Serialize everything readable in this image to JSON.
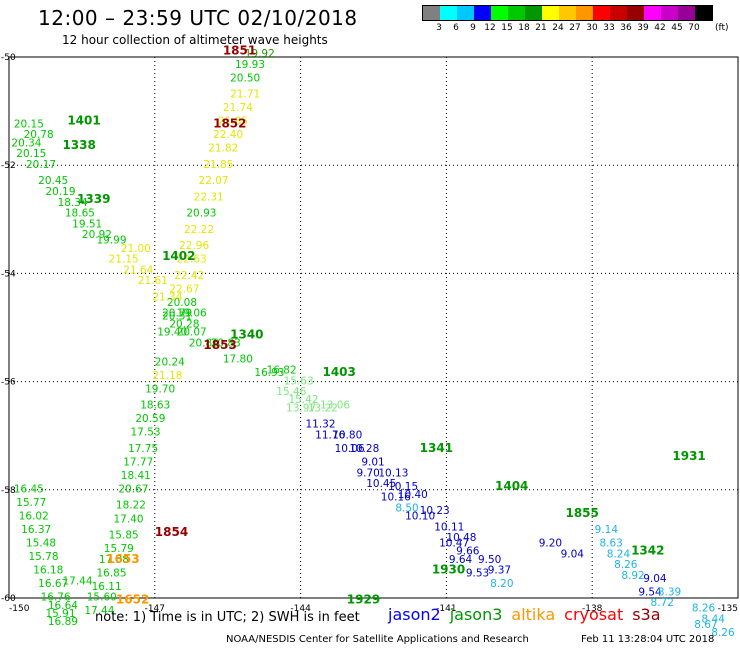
{
  "header": {
    "title": "12:00 – 23:59 UTC 02/10/2018",
    "subtitle": "12 hour collection of altimeter wave heights"
  },
  "colorbar": {
    "unit": "(ft)",
    "colors": [
      "#808080",
      "#00ffff",
      "#00c8ff",
      "#0000ff",
      "#00ff00",
      "#00c800",
      "#009600",
      "#ffff00",
      "#ffc800",
      "#ff9600",
      "#ff0000",
      "#c80000",
      "#960000",
      "#ff00ff",
      "#c800c8",
      "#960096",
      "#000000"
    ],
    "labels": [
      "3",
      "6",
      "9",
      "12",
      "15",
      "18",
      "21",
      "24",
      "27",
      "30",
      "33",
      "36",
      "39",
      "42",
      "45",
      "70"
    ]
  },
  "axes": {
    "lon_ticks": [
      "-150",
      "-147",
      "-144",
      "-141",
      "-138",
      "-135"
    ],
    "lat_ticks": [
      "-50",
      "-52",
      "-54",
      "-56",
      "-58",
      "-60"
    ],
    "lon_range": [
      -150,
      -135
    ],
    "lat_range": [
      -60,
      -50
    ]
  },
  "satellite_colors": {
    "jason2": "#0000ff",
    "jason3": "#009600",
    "altika": "#ff9600",
    "cryosat": "#ff0000",
    "s3a": "#960000"
  },
  "value_colors": {
    "yellow": "#e6e600",
    "lightgreen": "#00c800",
    "green": "#1f9a00",
    "cyan": "#1eb4e6",
    "blue": "#0000cc",
    "palegreen": "#7ee87e"
  },
  "time_labels": [
    {
      "text": "1851",
      "lon": -145.6,
      "lat": -49.95,
      "color": "s3a"
    },
    {
      "text": "1852",
      "lon": -145.8,
      "lat": -51.3,
      "color": "s3a"
    },
    {
      "text": "1853",
      "lon": -146.0,
      "lat": -55.4,
      "color": "s3a"
    },
    {
      "text": "1854",
      "lon": -147.0,
      "lat": -58.85,
      "color": "s3a"
    },
    {
      "text": "1401",
      "lon": -148.8,
      "lat": -51.25,
      "color": "jason3"
    },
    {
      "text": "1338",
      "lon": -148.9,
      "lat": -51.7,
      "color": "jason3"
    },
    {
      "text": "1339",
      "lon": -148.6,
      "lat": -52.7,
      "color": "jason3"
    },
    {
      "text": "1402",
      "lon": -146.85,
      "lat": -53.75,
      "color": "jason3"
    },
    {
      "text": "1340",
      "lon": -145.45,
      "lat": -55.2,
      "color": "jason3"
    },
    {
      "text": "1403",
      "lon": -143.55,
      "lat": -55.9,
      "color": "jason3"
    },
    {
      "text": "1341",
      "lon": -141.55,
      "lat": -57.3,
      "color": "jason3"
    },
    {
      "text": "1404",
      "lon": -140.0,
      "lat": -58.0,
      "color": "jason3"
    },
    {
      "text": "1931",
      "lon": -136.35,
      "lat": -57.45,
      "color": "jason3"
    },
    {
      "text": "1855",
      "lon": -138.55,
      "lat": -58.5,
      "color": "jason3"
    },
    {
      "text": "1342",
      "lon": -137.2,
      "lat": -59.2,
      "color": "jason3"
    },
    {
      "text": "1930",
      "lon": -141.3,
      "lat": -59.55,
      "color": "jason3"
    },
    {
      "text": "1929",
      "lon": -143.05,
      "lat": -60.1,
      "color": "jason3"
    },
    {
      "text": "1653",
      "lon": -148.0,
      "lat": -59.35,
      "color": "altika"
    },
    {
      "text": "1652",
      "lon": -147.8,
      "lat": -60.1,
      "color": "altika"
    }
  ],
  "value_labels": [
    {
      "text": "19.92",
      "lon": -145.15,
      "lat": -50.0,
      "color": "green"
    },
    {
      "text": "19.93",
      "lon": -145.35,
      "lat": -50.2,
      "color": "lightgreen"
    },
    {
      "text": "20.50",
      "lon": -145.45,
      "lat": -50.45,
      "color": "lightgreen"
    },
    {
      "text": "21.71",
      "lon": -145.45,
      "lat": -50.75,
      "color": "yellow"
    },
    {
      "text": "21.74",
      "lon": -145.6,
      "lat": -51.0,
      "color": "yellow"
    },
    {
      "text": "21.85",
      "lon": -145.7,
      "lat": -51.25,
      "color": "yellow"
    },
    {
      "text": "22.40",
      "lon": -145.8,
      "lat": -51.5,
      "color": "yellow"
    },
    {
      "text": "21.82",
      "lon": -145.9,
      "lat": -51.75,
      "color": "yellow"
    },
    {
      "text": "21.85",
      "lon": -146.0,
      "lat": -52.05,
      "color": "yellow"
    },
    {
      "text": "22.07",
      "lon": -146.1,
      "lat": -52.35,
      "color": "yellow"
    },
    {
      "text": "22.31",
      "lon": -146.2,
      "lat": -52.65,
      "color": "yellow"
    },
    {
      "text": "20.93",
      "lon": -146.35,
      "lat": -52.95,
      "color": "lightgreen"
    },
    {
      "text": "22.22",
      "lon": -146.4,
      "lat": -53.25,
      "color": "yellow"
    },
    {
      "text": "22.96",
      "lon": -146.5,
      "lat": -53.55,
      "color": "yellow"
    },
    {
      "text": "22.63",
      "lon": -146.55,
      "lat": -53.8,
      "color": "yellow"
    },
    {
      "text": "22.42",
      "lon": -146.6,
      "lat": -54.1,
      "color": "yellow"
    },
    {
      "text": "22.67",
      "lon": -146.7,
      "lat": -54.35,
      "color": "yellow"
    },
    {
      "text": "20.08",
      "lon": -146.75,
      "lat": -54.6,
      "color": "lightgreen"
    },
    {
      "text": "20.31",
      "lon": -146.85,
      "lat": -54.85,
      "color": "lightgreen"
    },
    {
      "text": "19.40",
      "lon": -146.95,
      "lat": -55.15,
      "color": "lightgreen"
    },
    {
      "text": "20.24",
      "lon": -147.0,
      "lat": -55.7,
      "color": "lightgreen"
    },
    {
      "text": "21.18",
      "lon": -147.05,
      "lat": -55.95,
      "color": "yellow"
    },
    {
      "text": "19.70",
      "lon": -147.2,
      "lat": -56.2,
      "color": "lightgreen"
    },
    {
      "text": "18.63",
      "lon": -147.3,
      "lat": -56.5,
      "color": "lightgreen"
    },
    {
      "text": "20.59",
      "lon": -147.4,
      "lat": -56.75,
      "color": "lightgreen"
    },
    {
      "text": "17.53",
      "lon": -147.5,
      "lat": -57.0,
      "color": "lightgreen"
    },
    {
      "text": "17.75",
      "lon": -147.55,
      "lat": -57.3,
      "color": "lightgreen"
    },
    {
      "text": "17.77",
      "lon": -147.65,
      "lat": -57.55,
      "color": "lightgreen"
    },
    {
      "text": "18.41",
      "lon": -147.7,
      "lat": -57.8,
      "color": "lightgreen"
    },
    {
      "text": "20.67",
      "lon": -147.75,
      "lat": -58.05,
      "color": "lightgreen"
    },
    {
      "text": "18.22",
      "lon": -147.8,
      "lat": -58.35,
      "color": "lightgreen"
    },
    {
      "text": "17.40",
      "lon": -147.85,
      "lat": -58.6,
      "color": "lightgreen"
    },
    {
      "text": "15.85",
      "lon": -147.95,
      "lat": -58.9,
      "color": "lightgreen"
    },
    {
      "text": "15.79",
      "lon": -148.05,
      "lat": -59.15,
      "color": "lightgreen"
    },
    {
      "text": "17.38",
      "lon": -148.15,
      "lat": -59.35,
      "color": "lightgreen"
    },
    {
      "text": "16.85",
      "lon": -148.2,
      "lat": -59.6,
      "color": "lightgreen"
    },
    {
      "text": "16.11",
      "lon": -148.3,
      "lat": -59.85,
      "color": "lightgreen"
    },
    {
      "text": "15.60",
      "lon": -148.4,
      "lat": -60.05,
      "color": "lightgreen"
    },
    {
      "text": "17.44",
      "lon": -148.45,
      "lat": -60.3,
      "color": "lightgreen"
    },
    {
      "text": "16.45",
      "lon": -149.9,
      "lat": -58.05,
      "color": "lightgreen"
    },
    {
      "text": "15.77",
      "lon": -149.85,
      "lat": -58.3,
      "color": "lightgreen"
    },
    {
      "text": "16.02",
      "lon": -149.8,
      "lat": -58.55,
      "color": "lightgreen"
    },
    {
      "text": "16.37",
      "lon": -149.75,
      "lat": -58.8,
      "color": "lightgreen"
    },
    {
      "text": "15.48",
      "lon": -149.65,
      "lat": -59.05,
      "color": "lightgreen"
    },
    {
      "text": "15.78",
      "lon": -149.6,
      "lat": -59.3,
      "color": "lightgreen"
    },
    {
      "text": "16.18",
      "lon": -149.5,
      "lat": -59.55,
      "color": "lightgreen"
    },
    {
      "text": "16.67",
      "lon": -149.4,
      "lat": -59.8,
      "color": "lightgreen"
    },
    {
      "text": "17.44",
      "lon": -148.9,
      "lat": -59.75,
      "color": "lightgreen"
    },
    {
      "text": "16.76",
      "lon": -149.35,
      "lat": -60.05,
      "color": "lightgreen"
    },
    {
      "text": "16.64",
      "lon": -149.2,
      "lat": -60.2,
      "color": "lightgreen"
    },
    {
      "text": "15.91",
      "lon": -149.25,
      "lat": -60.35,
      "color": "lightgreen"
    },
    {
      "text": "16.89",
      "lon": -149.2,
      "lat": -60.5,
      "color": "lightgreen"
    },
    {
      "text": "20.15",
      "lon": -149.9,
      "lat": -51.3,
      "color": "lightgreen"
    },
    {
      "text": "20.78",
      "lon": -149.7,
      "lat": -51.5,
      "color": "lightgreen"
    },
    {
      "text": "20.34",
      "lon": -149.95,
      "lat": -51.65,
      "color": "lightgreen"
    },
    {
      "text": "20.15",
      "lon": -149.85,
      "lat": -51.85,
      "color": "lightgreen"
    },
    {
      "text": "20.17",
      "lon": -149.65,
      "lat": -52.05,
      "color": "lightgreen"
    },
    {
      "text": "20.45",
      "lon": -149.4,
      "lat": -52.35,
      "color": "lightgreen"
    },
    {
      "text": "20.19",
      "lon": -149.25,
      "lat": -52.55,
      "color": "lightgreen"
    },
    {
      "text": "18.34",
      "lon": -149.0,
      "lat": -52.75,
      "color": "lightgreen"
    },
    {
      "text": "18.65",
      "lon": -148.85,
      "lat": -52.95,
      "color": "lightgreen"
    },
    {
      "text": "19.51",
      "lon": -148.7,
      "lat": -53.15,
      "color": "lightgreen"
    },
    {
      "text": "20.92",
      "lon": -148.5,
      "lat": -53.35,
      "color": "lightgreen"
    },
    {
      "text": "19.99",
      "lon": -148.2,
      "lat": -53.45,
      "color": "lightgreen"
    },
    {
      "text": "21.00",
      "lon": -147.7,
      "lat": -53.6,
      "color": "yellow"
    },
    {
      "text": "21.15",
      "lon": -147.95,
      "lat": -53.8,
      "color": "yellow"
    },
    {
      "text": "21.64",
      "lon": -147.65,
      "lat": -54.0,
      "color": "yellow"
    },
    {
      "text": "21.61",
      "lon": -147.35,
      "lat": -54.2,
      "color": "yellow"
    },
    {
      "text": "21.34",
      "lon": -147.05,
      "lat": -54.5,
      "color": "yellow"
    },
    {
      "text": "20.79",
      "lon": -146.85,
      "lat": -54.8,
      "color": "lightgreen"
    },
    {
      "text": "19.06",
      "lon": -146.55,
      "lat": -54.8,
      "color": "lightgreen"
    },
    {
      "text": "20.28",
      "lon": -146.7,
      "lat": -55.0,
      "color": "lightgreen"
    },
    {
      "text": "20.07",
      "lon": -146.55,
      "lat": -55.15,
      "color": "lightgreen"
    },
    {
      "text": "20.86",
      "lon": -146.3,
      "lat": -55.35,
      "color": "lightgreen"
    },
    {
      "text": "20.83",
      "lon": -145.85,
      "lat": -55.35,
      "color": "lightgreen"
    },
    {
      "text": "17.80",
      "lon": -145.6,
      "lat": -55.65,
      "color": "lightgreen"
    },
    {
      "text": "16.93",
      "lon": -144.95,
      "lat": -55.9,
      "color": "lightgreen"
    },
    {
      "text": "16.82",
      "lon": -144.7,
      "lat": -55.85,
      "color": "lightgreen"
    },
    {
      "text": "15.63",
      "lon": -144.35,
      "lat": -56.05,
      "color": "palegreen"
    },
    {
      "text": "15.46",
      "lon": -144.5,
      "lat": -56.25,
      "color": "palegreen"
    },
    {
      "text": "15.42",
      "lon": -144.25,
      "lat": -56.4,
      "color": "palegreen"
    },
    {
      "text": "13.97",
      "lon": -144.3,
      "lat": -56.55,
      "color": "palegreen"
    },
    {
      "text": "13.22",
      "lon": -143.85,
      "lat": -56.55,
      "color": "palegreen"
    },
    {
      "text": "13.06",
      "lon": -143.6,
      "lat": -56.5,
      "color": "palegreen"
    },
    {
      "text": "11.32",
      "lon": -143.9,
      "lat": -56.85,
      "color": "blue"
    },
    {
      "text": "11.76",
      "lon": -143.7,
      "lat": -57.05,
      "color": "blue"
    },
    {
      "text": "10.80",
      "lon": -143.35,
      "lat": -57.05,
      "color": "blue"
    },
    {
      "text": "10.06",
      "lon": -143.3,
      "lat": -57.3,
      "color": "blue"
    },
    {
      "text": "10.28",
      "lon": -143.0,
      "lat": -57.3,
      "color": "blue"
    },
    {
      "text": "9.01",
      "lon": -142.75,
      "lat": -57.55,
      "color": "blue"
    },
    {
      "text": "9.70",
      "lon": -142.85,
      "lat": -57.75,
      "color": "blue"
    },
    {
      "text": "10.13",
      "lon": -142.4,
      "lat": -57.75,
      "color": "blue"
    },
    {
      "text": "10.45",
      "lon": -142.65,
      "lat": -57.95,
      "color": "blue"
    },
    {
      "text": "10.15",
      "lon": -142.2,
      "lat": -58.0,
      "color": "blue"
    },
    {
      "text": "10.16",
      "lon": -142.35,
      "lat": -58.2,
      "color": "blue"
    },
    {
      "text": "10.40",
      "lon": -142.0,
      "lat": -58.15,
      "color": "blue"
    },
    {
      "text": "8.50",
      "lon": -142.05,
      "lat": -58.4,
      "color": "cyan"
    },
    {
      "text": "10.10",
      "lon": -141.85,
      "lat": -58.55,
      "color": "blue"
    },
    {
      "text": "10.23",
      "lon": -141.55,
      "lat": -58.45,
      "color": "blue"
    },
    {
      "text": "10.11",
      "lon": -141.25,
      "lat": -58.75,
      "color": "blue"
    },
    {
      "text": "10.48",
      "lon": -141.0,
      "lat": -58.95,
      "color": "blue"
    },
    {
      "text": "10.47",
      "lon": -141.15,
      "lat": -59.05,
      "color": "blue"
    },
    {
      "text": "9.66",
      "lon": -140.8,
      "lat": -59.2,
      "color": "blue"
    },
    {
      "text": "9.64",
      "lon": -140.95,
      "lat": -59.35,
      "color": "blue"
    },
    {
      "text": "9.50",
      "lon": -140.35,
      "lat": -59.35,
      "color": "blue"
    },
    {
      "text": "9.53",
      "lon": -140.6,
      "lat": -59.6,
      "color": "blue"
    },
    {
      "text": "9.37",
      "lon": -140.15,
      "lat": -59.55,
      "color": "blue"
    },
    {
      "text": "8.20",
      "lon": -140.1,
      "lat": -59.8,
      "color": "cyan"
    },
    {
      "text": "9.20",
      "lon": -139.1,
      "lat": -59.05,
      "color": "blue"
    },
    {
      "text": "9.04",
      "lon": -138.65,
      "lat": -59.25,
      "color": "blue"
    },
    {
      "text": "9.14",
      "lon": -137.95,
      "lat": -58.8,
      "color": "cyan"
    },
    {
      "text": "8.63",
      "lon": -137.85,
      "lat": -59.05,
      "color": "cyan"
    },
    {
      "text": "8.24",
      "lon": -137.7,
      "lat": -59.25,
      "color": "cyan"
    },
    {
      "text": "8.26",
      "lon": -137.55,
      "lat": -59.45,
      "color": "cyan"
    },
    {
      "text": "8.92",
      "lon": -137.4,
      "lat": -59.65,
      "color": "cyan"
    },
    {
      "text": "9.04",
      "lon": -136.95,
      "lat": -59.7,
      "color": "blue"
    },
    {
      "text": "9.54",
      "lon": -137.05,
      "lat": -59.95,
      "color": "blue"
    },
    {
      "text": "8.39",
      "lon": -136.65,
      "lat": -59.95,
      "color": "cyan"
    },
    {
      "text": "8.72",
      "lon": -136.8,
      "lat": -60.15,
      "color": "cyan"
    },
    {
      "text": "8.26",
      "lon": -135.95,
      "lat": -60.25,
      "color": "cyan"
    },
    {
      "text": "8.44",
      "lon": -135.75,
      "lat": -60.45,
      "color": "cyan"
    },
    {
      "text": "8.26",
      "lon": -135.55,
      "lat": -60.7,
      "color": "cyan"
    },
    {
      "text": "8.67",
      "lon": -135.9,
      "lat": -60.55,
      "color": "cyan"
    }
  ],
  "footer": {
    "note": "note: 1) Time is in UTC; 2) SWH is in feet",
    "legend": [
      "jason2",
      "jason3",
      "altika",
      "cryosat",
      "s3a"
    ],
    "credit": "NOAA/NESDIS Center for Satellite Applications and Research",
    "timestamp": "Feb 11 13:28:04 UTC 2018"
  }
}
